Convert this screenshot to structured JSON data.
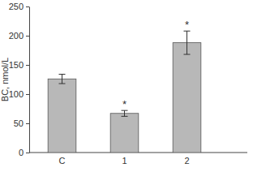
{
  "chart_data": {
    "type": "bar",
    "y_label": "BC, nmol/L",
    "categories": [
      "C",
      "1",
      "2"
    ],
    "values": [
      126,
      67,
      188
    ],
    "errors": [
      8,
      5,
      20
    ],
    "annotations": [
      {
        "x": "1",
        "text": "*"
      },
      {
        "x": "2",
        "text": "*"
      }
    ],
    "color": "#b8b8b8",
    "ylim": [
      0,
      250
    ],
    "yticks": [
      0,
      50,
      100,
      150,
      200,
      250
    ],
    "grid": false
  }
}
